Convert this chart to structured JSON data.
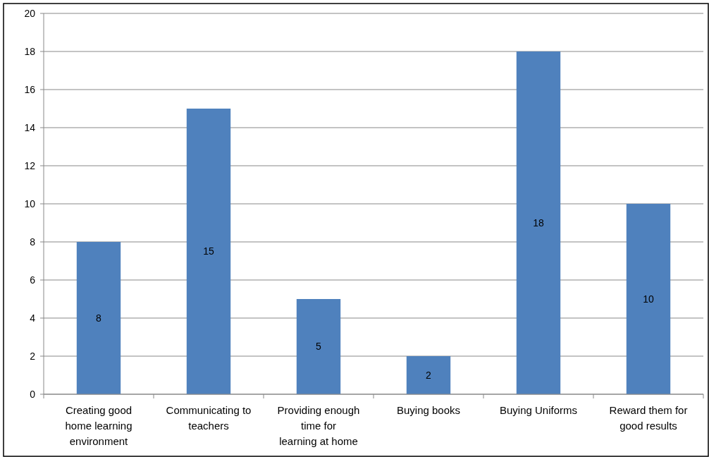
{
  "chart_data": {
    "type": "bar",
    "categories": [
      "Creating good home learning environment",
      "Communicating to teachers",
      "Providing enough time for learning at home",
      "Buying books",
      "Buying Uniforms",
      "Reward them for good results"
    ],
    "values": [
      8,
      15,
      5,
      2,
      18,
      10
    ],
    "color": "#4f81bd",
    "ylim": [
      0,
      20
    ],
    "yticks": [
      0,
      2,
      4,
      6,
      8,
      10,
      12,
      14,
      16,
      18,
      20
    ],
    "grid": "y",
    "data_labels": true
  }
}
